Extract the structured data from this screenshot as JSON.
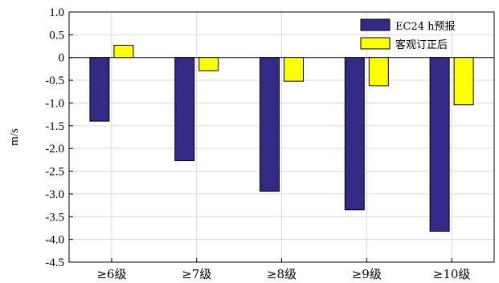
{
  "chart_data": {
    "type": "bar",
    "categories": [
      "≥6级",
      "≥7级",
      "≥8级",
      "≥9级",
      "≥10级"
    ],
    "series": [
      {
        "name": "EC24 h预报",
        "color": "#332a85",
        "values": [
          -1.4,
          -2.27,
          -2.94,
          -3.35,
          -3.82
        ]
      },
      {
        "name": "客观订正后",
        "color": "#ffff00",
        "values": [
          0.27,
          -0.29,
          -0.52,
          -0.62,
          -1.04
        ]
      }
    ],
    "ylim": [
      -4.5,
      1.0
    ],
    "yticks": [
      "1.0",
      "0.5",
      "0",
      "-0.5",
      "-1.0",
      "-1.5",
      "-2.0",
      "-2.5",
      "-3.0",
      "-3.5",
      "-4.0",
      "-4.5"
    ],
    "ylabel": "m/s",
    "xlabel": "",
    "title": "",
    "grid": true,
    "legend_position": "top-right",
    "bar_outline_color": "#000000",
    "grid_color": "#d9d9d9"
  }
}
